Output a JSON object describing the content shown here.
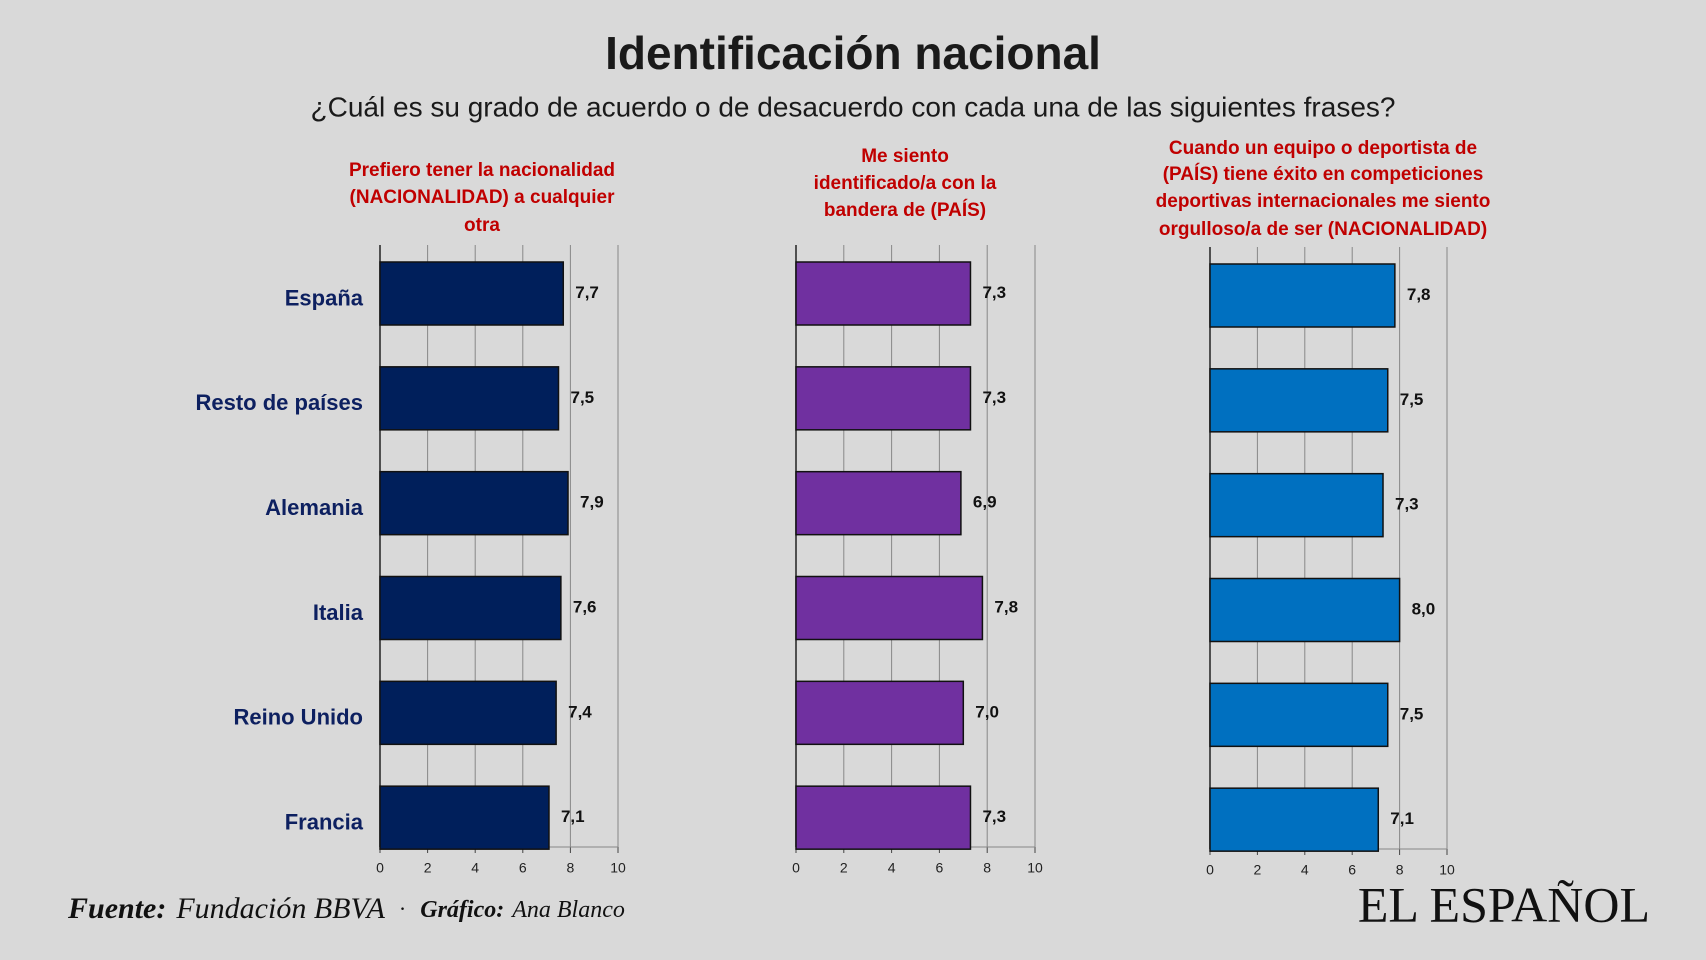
{
  "header": {
    "title": "Identificación nacional",
    "subtitle": "¿Cuál es su grado de acuerdo o de desacuerdo con cada una de las siguientes frases?"
  },
  "chart_data": [
    {
      "type": "bar",
      "orientation": "horizontal",
      "title": [
        "Prefiero tener la nacionalidad",
        "(NACIONALIDAD) a cualquier",
        "otra"
      ],
      "categories": [
        "España",
        "Resto de países",
        "Alemania",
        "Italia",
        "Reino Unido",
        "Francia"
      ],
      "values": [
        7.7,
        7.5,
        7.9,
        7.6,
        7.4,
        7.1
      ],
      "value_labels": [
        "7,7",
        "7,5",
        "7,9",
        "7,6",
        "7,4",
        "7,1"
      ],
      "color": "#001f5b",
      "xlim": [
        0,
        10
      ],
      "xticks": [
        0,
        2,
        4,
        6,
        8,
        10
      ],
      "grid": true
    },
    {
      "type": "bar",
      "orientation": "horizontal",
      "title": [
        "Me siento",
        "identificado/a con la",
        "bandera de (PAÍS)"
      ],
      "values": [
        7.3,
        7.3,
        6.9,
        7.8,
        7.0,
        7.3
      ],
      "value_labels": [
        "7,3",
        "7,3",
        "6,9",
        "7,8",
        "7,0",
        "7,3"
      ],
      "color": "#7030a0",
      "xlim": [
        0,
        10
      ],
      "xticks": [
        0,
        2,
        4,
        6,
        8,
        10
      ],
      "grid": true
    },
    {
      "type": "bar",
      "orientation": "horizontal",
      "title": [
        "Cuando un equipo o deportista de",
        "(PAÍS) tiene éxito en competiciones",
        "deportivas internacionales me siento",
        "orgulloso/a de ser (NACIONALIDAD)"
      ],
      "values": [
        7.8,
        7.5,
        7.3,
        8.0,
        7.5,
        7.1
      ],
      "value_labels": [
        "7,8",
        "7,5",
        "7,3",
        "8,0",
        "7,5",
        "7,1"
      ],
      "color": "#0070c0",
      "xlim": [
        0,
        10
      ],
      "xticks": [
        0,
        2,
        4,
        6,
        8,
        10
      ],
      "grid": true
    }
  ],
  "footer": {
    "source_label": "Fuente:",
    "source": "Fundación BBVA",
    "separator": "·",
    "credit_label": "Gráfico:",
    "credit": "Ana Blanco"
  },
  "logo": "EL ESPAÑOL"
}
